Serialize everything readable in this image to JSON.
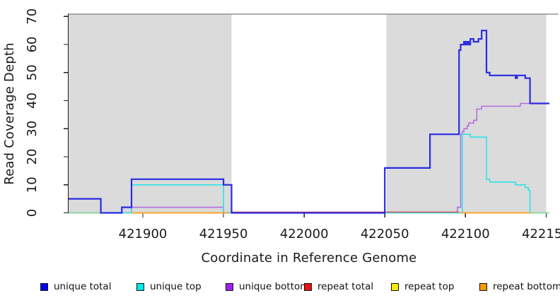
{
  "y_axis": {
    "label": "Read Coverage Depth",
    "ticks": [
      0,
      10,
      20,
      30,
      40,
      50,
      60,
      70
    ]
  },
  "x_axis": {
    "label": "Coordinate in Reference Genome",
    "ticks": [
      421900,
      421950,
      422000,
      422050,
      422100,
      422150
    ]
  },
  "legend": {
    "items": [
      {
        "label": "unique total",
        "color": "#0000F0"
      },
      {
        "label": "unique top",
        "color": "#00E8E8"
      },
      {
        "label": "unique bottom",
        "color": "#A020F0"
      },
      {
        "label": "repeat total",
        "color": "#EE1111"
      },
      {
        "label": "repeat top",
        "color": "#F5EA00"
      },
      {
        "label": "repeat bottom",
        "color": "#F59800"
      }
    ]
  },
  "chart_data": {
    "type": "line",
    "subtype": "step-coverage",
    "title": "",
    "xlabel": "Coordinate in Reference Genome",
    "ylabel": "Read Coverage Depth",
    "x_range": [
      421854,
      422152
    ],
    "ylim": [
      0,
      70
    ],
    "grid": "off",
    "legend_position": "bottom",
    "shade_color": "#DBDBDB",
    "shaded_regions": [
      {
        "from": 421854,
        "to": 421955
      },
      {
        "from": 422051,
        "to": 422150
      }
    ],
    "series": [
      {
        "name": "repeat top",
        "color": "#F2E61C",
        "width": 1.2,
        "points": [
          [
            421854,
            0
          ],
          [
            422152,
            0
          ]
        ]
      },
      {
        "name": "unique bottom",
        "color": "#B36EE0",
        "width": 1.6,
        "points": [
          [
            421854,
            0
          ],
          [
            421893,
            2
          ],
          [
            421950,
            0
          ],
          [
            422095,
            2
          ],
          [
            422097,
            28
          ],
          [
            422098,
            29
          ],
          [
            422099,
            30
          ],
          [
            422101,
            31
          ],
          [
            422102,
            32
          ],
          [
            422105,
            33
          ],
          [
            422107,
            37
          ],
          [
            422110,
            38
          ],
          [
            422134,
            39
          ],
          [
            422152,
            39
          ]
        ]
      },
      {
        "name": "unique top",
        "color": "#2FE3E8",
        "width": 1.6,
        "points": [
          [
            421854,
            0
          ],
          [
            421893,
            10
          ],
          [
            421950,
            0
          ],
          [
            422098,
            28
          ],
          [
            422103,
            27
          ],
          [
            422113,
            12
          ],
          [
            422115,
            11
          ],
          [
            422131,
            10
          ],
          [
            422137,
            9
          ],
          [
            422139,
            8
          ],
          [
            422140,
            0
          ],
          [
            422152,
            0
          ]
        ]
      },
      {
        "name": "repeat total",
        "color": "#E5372E",
        "width": 1.2,
        "points": [
          [
            421854,
            0
          ],
          [
            422152,
            0
          ]
        ],
        "visible_segments": [
          [
            421955,
            422096
          ]
        ],
        "render_offset_y": -1.2
      },
      {
        "name": "repeat bottom",
        "color": "#FF9D14",
        "width": 1.8,
        "points": [
          [
            421854,
            0
          ],
          [
            422152,
            0
          ]
        ],
        "visible_segments": [
          [
            421893,
            421953
          ],
          [
            422097,
            422140
          ]
        ]
      },
      {
        "name": "baseline overlap tint",
        "color": "#8FD98F",
        "width": 1.5,
        "points": [
          [
            421854,
            0
          ],
          [
            422152,
            0
          ]
        ],
        "visible_segments": [
          [
            421854,
            421874
          ],
          [
            422140,
            422152
          ]
        ]
      },
      {
        "name": "unique total",
        "color": "#2B2BE3",
        "width": 2.2,
        "points": [
          [
            421854,
            5
          ],
          [
            421874,
            0
          ],
          [
            421887,
            2
          ],
          [
            421893,
            12
          ],
          [
            421950,
            10
          ],
          [
            421955,
            0
          ],
          [
            422050,
            16
          ],
          [
            422078,
            28
          ],
          [
            422096,
            58
          ],
          [
            422097,
            60
          ],
          [
            422099,
            61
          ],
          [
            422100,
            60
          ],
          [
            422101,
            61
          ],
          [
            422102,
            60
          ],
          [
            422103,
            62
          ],
          [
            422105,
            61
          ],
          [
            422108,
            62
          ],
          [
            422110,
            65
          ],
          [
            422113,
            50
          ],
          [
            422115,
            49
          ],
          [
            422131,
            48
          ],
          [
            422132,
            49
          ],
          [
            422137,
            48
          ],
          [
            422140,
            39
          ],
          [
            422152,
            39
          ]
        ]
      }
    ]
  }
}
